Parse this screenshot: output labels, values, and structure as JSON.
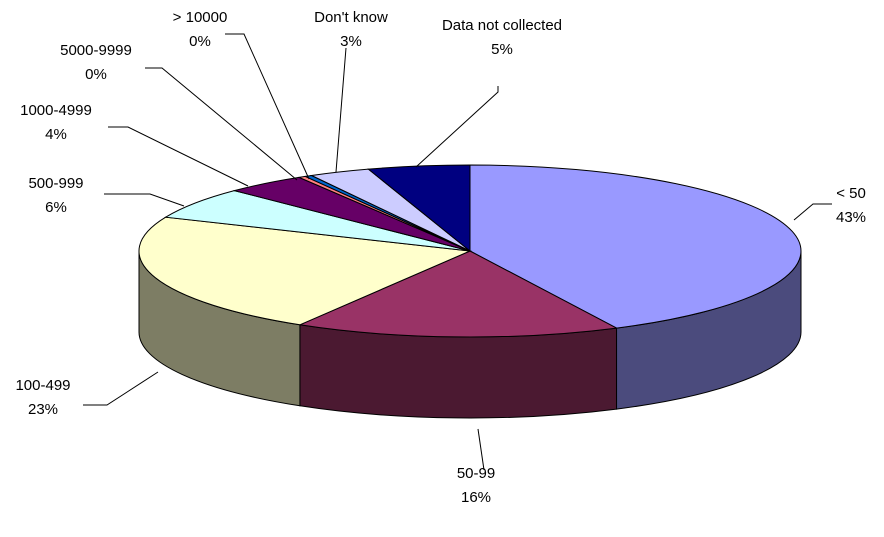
{
  "chart_data": {
    "type": "pie",
    "style": "3d",
    "title": "",
    "slices": [
      {
        "label": "< 50",
        "value": 43,
        "value_label": "43%",
        "color": "#9999ff",
        "side_color": "#4b4b7d"
      },
      {
        "label": "50-99",
        "value": 16,
        "value_label": "16%",
        "color": "#993366",
        "side_color": "#4b1931"
      },
      {
        "label": "100-499",
        "value": 23,
        "value_label": "23%",
        "color": "#ffffcc",
        "side_color": "#7d7d64"
      },
      {
        "label": "500-999",
        "value": 6,
        "value_label": "6%",
        "color": "#ccffff",
        "side_color": "#647d7d"
      },
      {
        "label": "1000-4999",
        "value": 4,
        "value_label": "4%",
        "color": "#660066",
        "side_color": "#320032"
      },
      {
        "label": "5000-9999",
        "value": 0,
        "value_label": "0%",
        "color": "#ff8080",
        "side_color": "#7d3f3f"
      },
      {
        "label": "> 10000",
        "value": 0,
        "value_label": "0%",
        "color": "#0066cc",
        "side_color": "#003264"
      },
      {
        "label": "Don't know",
        "value": 3,
        "value_label": "3%",
        "color": "#ccccff",
        "side_color": "#64647d"
      },
      {
        "label": "Data not collected",
        "value": 5,
        "value_label": "5%",
        "color": "#000080",
        "side_color": "#00003f"
      }
    ],
    "legend": "none"
  }
}
